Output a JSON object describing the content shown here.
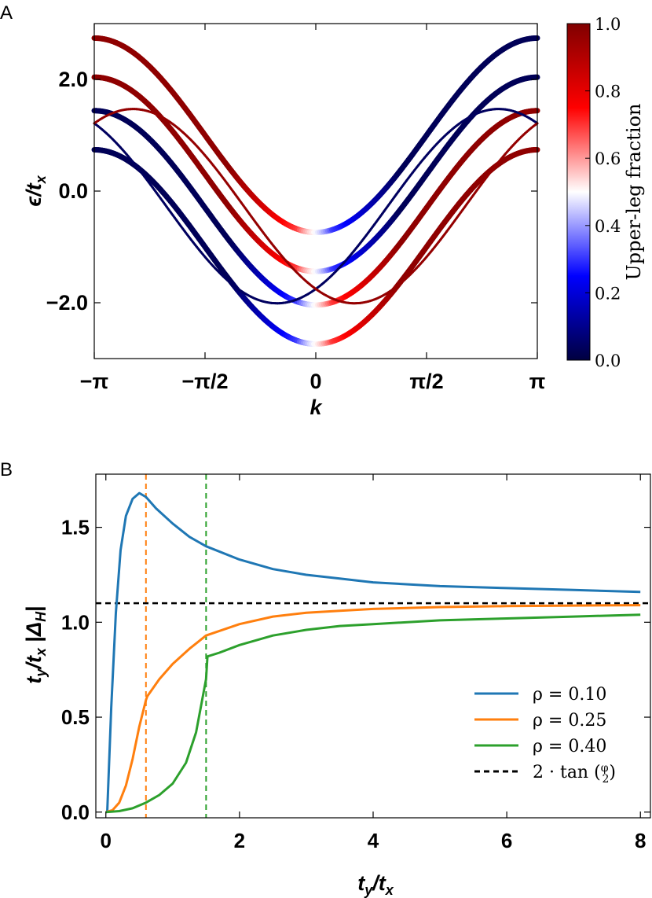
{
  "chart_data": [
    {
      "panel": "A",
      "type": "line",
      "xlabel_main": "k",
      "ylabel_main": "ϵ",
      "ylabel_sub": "t",
      "ylabel_subsub": "x",
      "xlim": [
        -3.14159,
        3.14159
      ],
      "ylim": [
        -3.0,
        3.0
      ],
      "x_ticks": [
        {
          "value": -3.14159,
          "label": "−π"
        },
        {
          "value": -1.5708,
          "label": "−π/2"
        },
        {
          "value": 0,
          "label": "0"
        },
        {
          "value": 1.5708,
          "label": "π/2"
        },
        {
          "value": 3.14159,
          "label": "π"
        }
      ],
      "y_ticks": [
        {
          "value": -2.0,
          "label": "−2.0"
        },
        {
          "value": 0.0,
          "label": "0.0"
        },
        {
          "value": 2.0,
          "label": "2.0"
        }
      ],
      "colorbar": {
        "label": "Upper-leg fraction",
        "range": [
          0.0,
          1.0
        ],
        "ticks": [
          "0.0",
          "0.2",
          "0.4",
          "0.6",
          "0.8",
          "1.0"
        ],
        "colors": [
          "#000040",
          "#0000ff",
          "#ffffff",
          "#ff0000",
          "#800000"
        ]
      },
      "bands": [
        {
          "offset": 1.0,
          "phase": 0.0,
          "hue": "split",
          "weight": "thick"
        },
        {
          "offset": 0.3,
          "phase": 0.0,
          "hue": "split",
          "weight": "thick"
        },
        {
          "offset": -0.3,
          "phase": 0.0,
          "hue": "split-inverse",
          "weight": "thick"
        },
        {
          "offset": -1.0,
          "phase": 0.0,
          "hue": "split-inverse",
          "weight": "thick"
        },
        {
          "offset": 0.0,
          "phase": 0.55,
          "hue": "dark-blue",
          "weight": "thin"
        },
        {
          "offset": 0.0,
          "phase": -0.55,
          "hue": "dark-red",
          "weight": "thin"
        }
      ]
    },
    {
      "panel": "B",
      "type": "line",
      "xlabel_main": "t",
      "xlabel_sub": "y",
      "xlabel_den": "t",
      "xlabel_den_sub": "x",
      "ylabel_main": "t",
      "ylabel_sub": "y",
      "ylabel_den": "t",
      "ylabel_den_sub": "x",
      "ylabel_delta": "Δ",
      "ylabel_delta_sub": "H",
      "xlim": [
        -0.15,
        8.15
      ],
      "ylim": [
        -0.03,
        1.78
      ],
      "x_ticks": [
        "0",
        "2",
        "4",
        "6",
        "8"
      ],
      "y_ticks": [
        "0.0",
        "0.5",
        "1.0",
        "1.5"
      ],
      "reference_line": {
        "y": 1.1,
        "label": "2 · tan",
        "frac_num": "φ",
        "frac_den": "2",
        "color": "#000000"
      },
      "series": [
        {
          "name": "ρ = 0.10",
          "color": "#1f77b4",
          "transition": 0.02,
          "x": [
            0.02,
            0.08,
            0.15,
            0.22,
            0.3,
            0.4,
            0.5,
            0.6,
            0.75,
            1.0,
            1.25,
            1.5,
            2.0,
            2.5,
            3.0,
            3.5,
            4.0,
            5.0,
            6.0,
            7.0,
            8.0
          ],
          "y": [
            0.0,
            0.55,
            1.05,
            1.38,
            1.56,
            1.65,
            1.68,
            1.66,
            1.6,
            1.52,
            1.45,
            1.4,
            1.33,
            1.28,
            1.25,
            1.23,
            1.21,
            1.19,
            1.18,
            1.17,
            1.16
          ]
        },
        {
          "name": "ρ = 0.25",
          "color": "#ff7f0e",
          "transition": 0.6,
          "x": [
            0.0,
            0.1,
            0.2,
            0.3,
            0.4,
            0.5,
            0.6,
            0.62,
            0.8,
            1.0,
            1.25,
            1.5,
            2.0,
            2.5,
            3.0,
            3.5,
            4.0,
            5.0,
            6.0,
            7.0,
            8.0
          ],
          "y": [
            0.0,
            0.01,
            0.05,
            0.14,
            0.28,
            0.45,
            0.59,
            0.61,
            0.7,
            0.78,
            0.86,
            0.93,
            0.99,
            1.03,
            1.05,
            1.06,
            1.07,
            1.08,
            1.085,
            1.088,
            1.09
          ]
        },
        {
          "name": "ρ = 0.40",
          "color": "#2ca02c",
          "transition": 1.5,
          "x": [
            0.0,
            0.2,
            0.4,
            0.6,
            0.8,
            1.0,
            1.2,
            1.35,
            1.5,
            1.52,
            1.7,
            2.0,
            2.5,
            3.0,
            3.5,
            4.0,
            5.0,
            6.0,
            7.0,
            8.0
          ],
          "y": [
            0.0,
            0.005,
            0.02,
            0.05,
            0.09,
            0.15,
            0.26,
            0.42,
            0.7,
            0.82,
            0.84,
            0.88,
            0.93,
            0.96,
            0.98,
            0.99,
            1.01,
            1.02,
            1.03,
            1.04
          ]
        }
      ],
      "legend": {
        "placement": "lower-right"
      }
    }
  ],
  "panel_labels": [
    "A",
    "B"
  ]
}
